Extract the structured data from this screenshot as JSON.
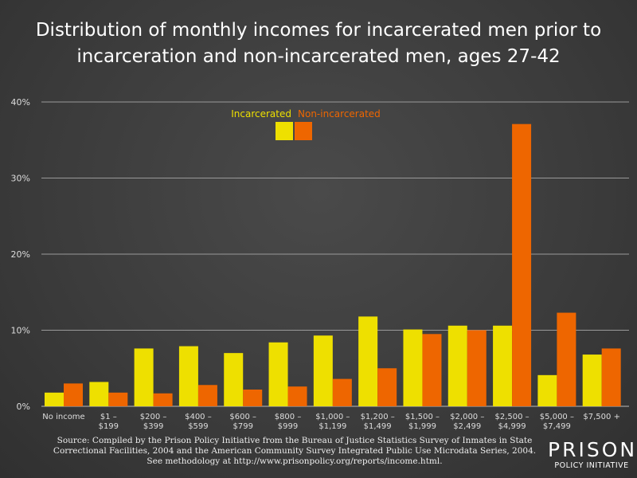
{
  "chart_data": {
    "type": "bar",
    "title": "Distribution of monthly incomes for incarcerated men prior to incarceration and non-incarcerated men, ages 27-42",
    "categories": [
      [
        "No income"
      ],
      [
        "$1 –",
        "$199"
      ],
      [
        "$200 –",
        "$399"
      ],
      [
        "$400 –",
        "$599"
      ],
      [
        "$600 –",
        "$799"
      ],
      [
        "$800 –",
        "$999"
      ],
      [
        "$1,000 –",
        "$1,199"
      ],
      [
        "$1,200 –",
        "$1,499"
      ],
      [
        "$1,500 –",
        "$1,999"
      ],
      [
        "$2,000 –",
        "$2,499"
      ],
      [
        "$2,500 –",
        "$4,999"
      ],
      [
        "$5,000 –",
        "$7,499"
      ],
      [
        "$7,500 +"
      ]
    ],
    "series": [
      {
        "name": "Incarcerated",
        "color": "#eee000",
        "values": [
          1.8,
          3.2,
          7.6,
          7.9,
          7.0,
          8.4,
          9.3,
          11.8,
          10.1,
          10.6,
          10.6,
          4.1,
          6.8
        ]
      },
      {
        "name": "Non-incarcerated",
        "color": "#ee6600",
        "values": [
          3.0,
          1.8,
          1.7,
          2.8,
          2.2,
          2.6,
          3.6,
          5.0,
          9.5,
          10.0,
          37.1,
          12.3,
          7.6
        ]
      }
    ],
    "ylim": [
      0,
      40
    ],
    "yticks": [
      "0%",
      "10%",
      "20%",
      "30%",
      "40%"
    ],
    "grid": true,
    "legend": "top-center"
  },
  "source": [
    "Source: Compiled by the Prison Policy Initiative from the Bureau of Justice Statistics Survey of Inmates in State",
    "Correctional Facilities, 2004 and the American Community Survey Integrated Public Use Microdata Series, 2004.",
    "See methodology at http://www.prisonpolicy.org/reports/income.html."
  ],
  "logo": {
    "line1": "PRISON",
    "line2": "POLICY INITIATIVE"
  }
}
